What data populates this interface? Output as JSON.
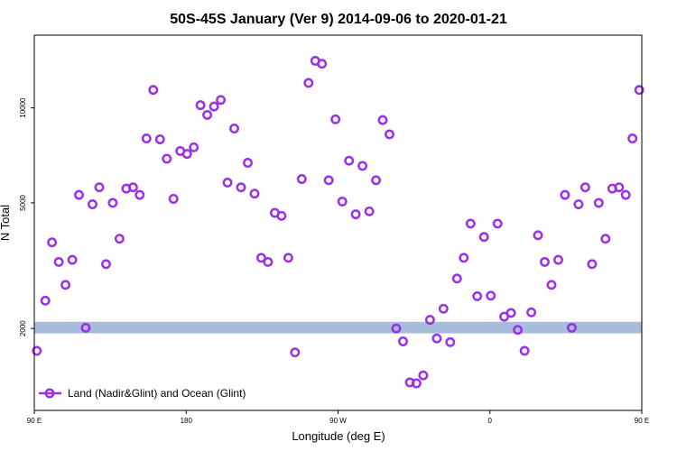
{
  "chart_data": {
    "type": "scatter",
    "title": "50S-45S January (Ver 9)   2014-09-06 to 2020-01-21",
    "xlabel": "Longitude (deg E)",
    "ylabel": "N Total",
    "y_scale": "log",
    "xlim": [
      90,
      450
    ],
    "ylim": [
      1100,
      17000
    ],
    "x_ticks": [
      {
        "value": 90,
        "label": "90 E"
      },
      {
        "value": 180,
        "label": "180"
      },
      {
        "value": 270,
        "label": "90 W"
      },
      {
        "value": 360,
        "label": "0"
      },
      {
        "value": 450,
        "label": "90 E"
      },
      {
        "value": 540,
        "label": "180"
      }
    ],
    "y_ticks": [
      {
        "value": 2000,
        "label": "2000"
      },
      {
        "value": 5000,
        "label": "5000"
      },
      {
        "value": 10000,
        "label": "10000"
      }
    ],
    "legend": {
      "position": "bottom-left"
    },
    "ocean_band": {
      "y_min": 1930,
      "y_max": 2100,
      "color": "#a7bddb"
    },
    "series": [
      {
        "name": "Land (Nadir&Glint) and Ocean (Glint)",
        "color": "#9b30e8",
        "marker": "circle-open",
        "points": [
          [
            91.5,
            1700
          ],
          [
            96.5,
            2450
          ],
          [
            100.5,
            3750
          ],
          [
            104.5,
            3250
          ],
          [
            108.5,
            2750
          ],
          [
            112.5,
            3300
          ],
          [
            116.5,
            5300
          ],
          [
            120.5,
            2010
          ],
          [
            124.5,
            4950
          ],
          [
            128.5,
            5600
          ],
          [
            132.5,
            3200
          ],
          [
            136.5,
            5000
          ],
          [
            140.5,
            3850
          ],
          [
            144.5,
            5550
          ],
          [
            148.5,
            5600
          ],
          [
            152.5,
            5300
          ],
          [
            156.5,
            8000
          ],
          [
            160.5,
            11400
          ],
          [
            164.5,
            7950
          ],
          [
            168.5,
            6900
          ],
          [
            172.5,
            5150
          ],
          [
            176.5,
            7300
          ],
          [
            180.5,
            7150
          ],
          [
            184.5,
            7500
          ],
          [
            188.5,
            10200
          ],
          [
            192.5,
            9500
          ],
          [
            196.5,
            10100
          ],
          [
            200.5,
            10600
          ],
          [
            204.5,
            5800
          ],
          [
            208.5,
            8600
          ],
          [
            212.5,
            5600
          ],
          [
            216.5,
            6700
          ],
          [
            220.5,
            5350
          ],
          [
            224.5,
            3350
          ],
          [
            228.5,
            3250
          ],
          [
            232.5,
            4650
          ],
          [
            236.5,
            4550
          ],
          [
            240.5,
            3350
          ],
          [
            244.5,
            1680
          ],
          [
            248.5,
            5950
          ],
          [
            252.5,
            12000
          ],
          [
            256.5,
            14100
          ],
          [
            260.5,
            13800
          ],
          [
            264.5,
            5900
          ],
          [
            268.5,
            9200
          ],
          [
            272.5,
            5050
          ],
          [
            276.5,
            6800
          ],
          [
            280.5,
            4600
          ],
          [
            284.5,
            6550
          ],
          [
            288.5,
            4700
          ],
          [
            292.5,
            5900
          ],
          [
            296.5,
            9150
          ],
          [
            300.5,
            8250
          ],
          [
            304.5,
            2000
          ],
          [
            308.5,
            1820
          ],
          [
            312.5,
            1350
          ],
          [
            316.5,
            1340
          ],
          [
            320.5,
            1420
          ],
          [
            324.5,
            2130
          ],
          [
            328.5,
            1860
          ],
          [
            332.5,
            2310
          ],
          [
            336.5,
            1810
          ],
          [
            340.5,
            2880
          ],
          [
            344.5,
            3350
          ],
          [
            348.5,
            4300
          ],
          [
            352.5,
            2530
          ],
          [
            356.5,
            3900
          ],
          [
            360.5,
            2540
          ],
          [
            364.5,
            4300
          ],
          [
            368.5,
            2180
          ],
          [
            372.5,
            2240
          ],
          [
            376.5,
            1980
          ],
          [
            380.5,
            1700
          ],
          [
            384.5,
            2250
          ],
          [
            388.5,
            3950
          ],
          [
            392.5,
            3250
          ],
          [
            396.5,
            2750
          ],
          [
            400.5,
            3300
          ],
          [
            404.5,
            5300
          ],
          [
            408.5,
            2010
          ],
          [
            412.5,
            4950
          ],
          [
            416.5,
            5600
          ],
          [
            420.5,
            3200
          ],
          [
            424.5,
            5000
          ],
          [
            428.5,
            3850
          ],
          [
            432.5,
            5550
          ],
          [
            436.5,
            5600
          ],
          [
            440.5,
            5300
          ],
          [
            444.5,
            8000
          ],
          [
            448.5,
            11400
          ]
        ]
      }
    ]
  }
}
